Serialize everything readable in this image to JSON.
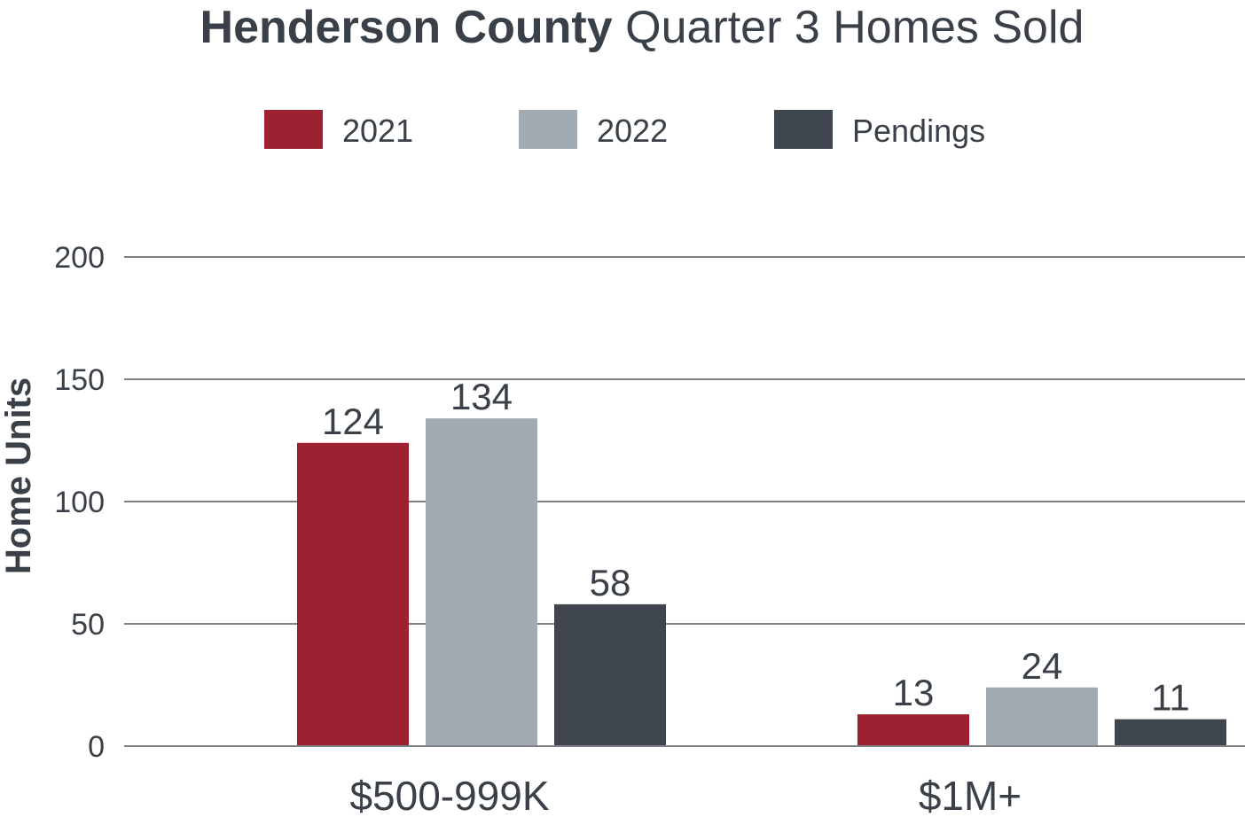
{
  "title": {
    "bold": "Henderson County",
    "regular": " Quarter 3 Homes Sold"
  },
  "chart_data": {
    "type": "bar",
    "categories": [
      "$500-999K",
      "$1M+"
    ],
    "series": [
      {
        "name": "2021",
        "values": [
          124,
          13
        ],
        "color": "#9e2131"
      },
      {
        "name": "2022",
        "values": [
          134,
          24
        ],
        "color": "#a2abb1"
      },
      {
        "name": "Pendings",
        "values": [
          58,
          11
        ],
        "color": "#40464e"
      }
    ],
    "data_labels": [
      [
        "124",
        "13"
      ],
      [
        "134",
        "24"
      ],
      [
        "58",
        "11"
      ]
    ],
    "ylabel": "Home Units",
    "xlabel": "",
    "ylim": [
      0,
      200
    ],
    "yticks": [
      0,
      50,
      100,
      150,
      200
    ],
    "ytick_labels": [
      "0",
      "50",
      "100",
      "150",
      "200"
    ],
    "grid": true,
    "legend_position": "top"
  },
  "colors": {
    "text": "#3a4048",
    "grid": "#7d8186"
  }
}
